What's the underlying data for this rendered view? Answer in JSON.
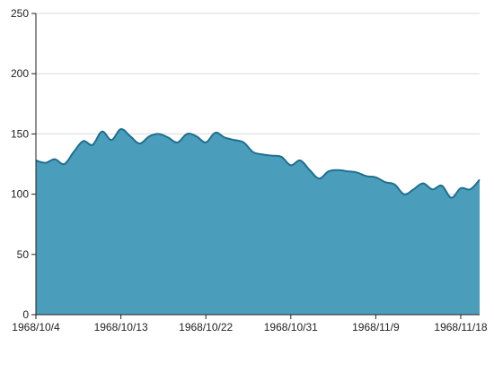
{
  "chart_data": {
    "type": "area",
    "title": "",
    "xlabel": "",
    "ylabel": "",
    "ylim": [
      0,
      250
    ],
    "grid": true,
    "legend": "none",
    "colors": {
      "fill": "#4b9dbc",
      "line": "#1f6f8f",
      "grid": "#d9d9d9",
      "axis": "#222222"
    },
    "yticks": [
      "0",
      "50",
      "100",
      "150",
      "200",
      "250"
    ],
    "xticks": [
      {
        "label": "1968/10/4",
        "day": 0
      },
      {
        "label": "1968/10/13",
        "day": 9
      },
      {
        "label": "1968/10/22",
        "day": 18
      },
      {
        "label": "1968/10/31",
        "day": 27
      },
      {
        "label": "1968/11/9",
        "day": 36
      },
      {
        "label": "1968/11/18",
        "day": 45
      }
    ],
    "x": [
      "1968/10/4",
      "1968/10/5",
      "1968/10/6",
      "1968/10/7",
      "1968/10/8",
      "1968/10/9",
      "1968/10/10",
      "1968/10/11",
      "1968/10/12",
      "1968/10/13",
      "1968/10/14",
      "1968/10/15",
      "1968/10/16",
      "1968/10/17",
      "1968/10/18",
      "1968/10/19",
      "1968/10/20",
      "1968/10/21",
      "1968/10/22",
      "1968/10/23",
      "1968/10/24",
      "1968/10/25",
      "1968/10/26",
      "1968/10/27",
      "1968/10/28",
      "1968/10/29",
      "1968/10/30",
      "1968/10/31",
      "1968/11/1",
      "1968/11/2",
      "1968/11/3",
      "1968/11/4",
      "1968/11/5",
      "1968/11/6",
      "1968/11/7",
      "1968/11/8",
      "1968/11/9",
      "1968/11/10",
      "1968/11/11",
      "1968/11/12",
      "1968/11/13",
      "1968/11/14",
      "1968/11/15",
      "1968/11/16",
      "1968/11/17",
      "1968/11/18",
      "1968/11/19",
      "1968/11/20"
    ],
    "series": [
      {
        "values": [
          128,
          126,
          129,
          125,
          135,
          144,
          141,
          152,
          145,
          154,
          148,
          142,
          148,
          150,
          147,
          143,
          150,
          148,
          143,
          151,
          147,
          145,
          143,
          135,
          133,
          132,
          131,
          124,
          128,
          120,
          113,
          119,
          120,
          119,
          118,
          115,
          114,
          110,
          108,
          100,
          104,
          109,
          104,
          107,
          97,
          105,
          104,
          112
        ]
      }
    ]
  }
}
